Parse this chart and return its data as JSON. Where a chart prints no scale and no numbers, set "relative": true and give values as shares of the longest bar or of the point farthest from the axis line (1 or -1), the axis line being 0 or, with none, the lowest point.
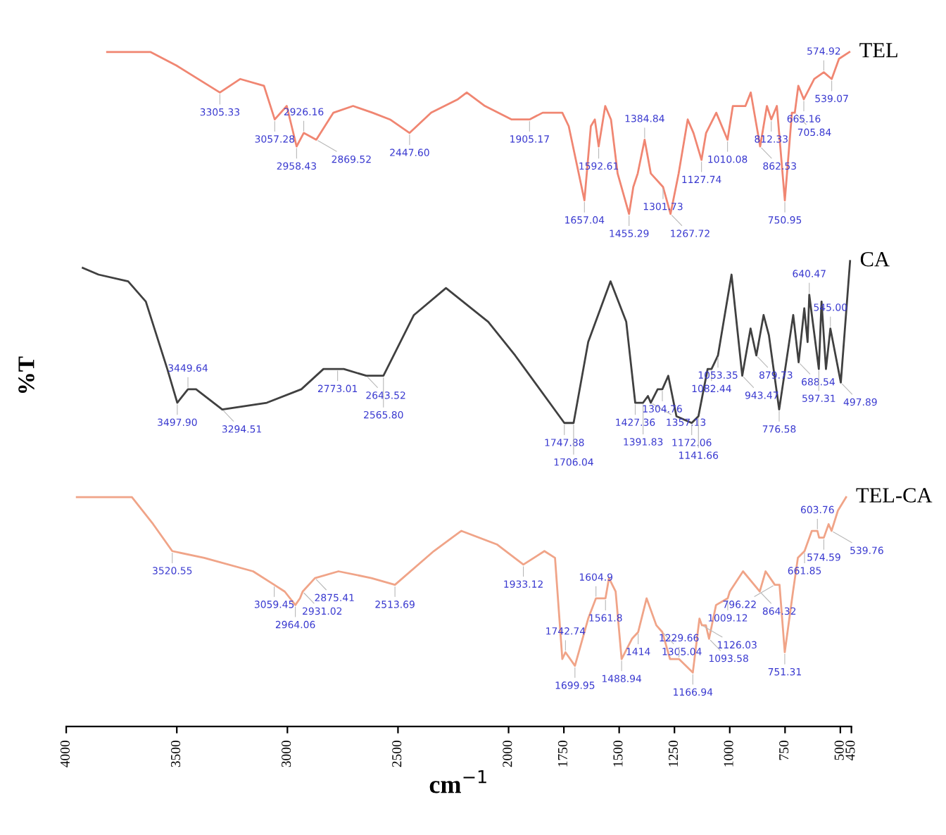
{
  "chart_data": {
    "type": "line",
    "relative": true,
    "xlabel": "cm$^{−1}$",
    "ylabel": "%T",
    "xlim": [
      4000,
      450
    ],
    "xticks": [
      4000,
      3500,
      3000,
      2500,
      2000,
      1750,
      1500,
      1250,
      1000,
      750,
      500,
      450
    ],
    "legend": false,
    "grid": false,
    "marker": "none",
    "line_style": "solid",
    "tick_labels": "x",
    "series": [
      {
        "name": "TEL",
        "color": "#f08672",
        "x": [
          3815,
          3618,
          3502,
          3305.33,
          3213,
          3106,
          3057.28,
          3003,
          2958.43,
          2926.16,
          2869.52,
          2792,
          2703,
          2615,
          2536,
          2447.6,
          2350,
          2229,
          2189,
          2107,
          1986,
          1905.17,
          1846,
          1757,
          1728,
          1657.04,
          1628,
          1610,
          1592.61,
          1563,
          1537,
          1507,
          1455.29,
          1436,
          1416,
          1384.84,
          1357,
          1301.73,
          1267.72,
          1231,
          1190,
          1164,
          1127.74,
          1107,
          1061,
          1010.08,
          986,
          929,
          905,
          862.53,
          832,
          812.33,
          787,
          750.95,
          719,
          705.84,
          690,
          665.16,
          618,
          574.92,
          539.07,
          506,
          459
        ],
        "values": [
          1.0,
          1.0,
          0.98,
          0.94,
          0.96,
          0.95,
          0.9,
          0.92,
          0.86,
          0.88,
          0.87,
          0.91,
          0.92,
          0.91,
          0.9,
          0.88,
          0.91,
          0.93,
          0.94,
          0.92,
          0.9,
          0.9,
          0.91,
          0.91,
          0.89,
          0.78,
          0.89,
          0.9,
          0.86,
          0.92,
          0.9,
          0.82,
          0.76,
          0.8,
          0.82,
          0.87,
          0.82,
          0.8,
          0.76,
          0.82,
          0.9,
          0.88,
          0.84,
          0.88,
          0.91,
          0.87,
          0.92,
          0.92,
          0.94,
          0.86,
          0.92,
          0.9,
          0.92,
          0.78,
          0.91,
          0.91,
          0.95,
          0.93,
          0.96,
          0.97,
          0.96,
          0.99,
          1.0
        ]
      },
      {
        "name": "CA",
        "color": "#404040",
        "x": [
          3925,
          3854,
          3720,
          3640,
          3543,
          3497.9,
          3449.64,
          3413,
          3294.51,
          3093,
          2937,
          2837,
          2773.01,
          2745,
          2643.52,
          2589,
          2565.8,
          2428,
          2283,
          2092,
          1970,
          1747.88,
          1706.04,
          1640,
          1539,
          1468,
          1427.36,
          1417,
          1391.83,
          1370,
          1357.13,
          1326,
          1304.76,
          1278,
          1241,
          1172.06,
          1141.66,
          1100,
          1082.44,
          1053.35,
          992,
          943.47,
          906,
          879.73,
          847,
          823,
          776.58,
          713,
          688.54,
          663,
          648,
          640.47,
          597.31,
          585,
          565,
          545.0,
          497.89,
          456
        ],
        "values": [
          0.68,
          0.67,
          0.66,
          0.63,
          0.53,
          0.48,
          0.5,
          0.5,
          0.47,
          0.48,
          0.5,
          0.53,
          0.53,
          0.53,
          0.52,
          0.52,
          0.52,
          0.61,
          0.65,
          0.6,
          0.55,
          0.45,
          0.45,
          0.57,
          0.66,
          0.6,
          0.48,
          0.48,
          0.48,
          0.49,
          0.48,
          0.5,
          0.5,
          0.52,
          0.46,
          0.45,
          0.46,
          0.53,
          0.53,
          0.55,
          0.67,
          0.52,
          0.59,
          0.55,
          0.61,
          0.58,
          0.47,
          0.61,
          0.54,
          0.62,
          0.57,
          0.64,
          0.53,
          0.63,
          0.53,
          0.59,
          0.51,
          0.69
        ]
      },
      {
        "name": "TEL-CA",
        "color": "#f0a488",
        "x": [
          3952,
          3703,
          3607,
          3520.55,
          3376,
          3155,
          3059.45,
          3012,
          2964.06,
          2943,
          2931.02,
          2875.41,
          2769,
          2620,
          2513.69,
          2338,
          2214,
          2053,
          1933.12,
          1838,
          1790,
          1757,
          1742.74,
          1699.95,
          1640,
          1604.9,
          1579,
          1561.8,
          1546,
          1516,
          1488.94,
          1442,
          1414,
          1376,
          1332,
          1305.04,
          1270,
          1229.66,
          1166.94,
          1137,
          1126.03,
          1108,
          1093.58,
          1062,
          1009.12,
          1000,
          940,
          864.32,
          838,
          796.22,
          775,
          751.31,
          714,
          692,
          661.85,
          629,
          603.76,
          596,
          574.59,
          553,
          539.76,
          511,
          474
        ],
        "values": [
          0.34,
          0.34,
          0.3,
          0.26,
          0.25,
          0.23,
          0.21,
          0.2,
          0.18,
          0.19,
          0.2,
          0.22,
          0.23,
          0.22,
          0.21,
          0.26,
          0.29,
          0.27,
          0.24,
          0.26,
          0.25,
          0.1,
          0.11,
          0.09,
          0.16,
          0.19,
          0.19,
          0.19,
          0.22,
          0.2,
          0.1,
          0.13,
          0.14,
          0.19,
          0.15,
          0.14,
          0.1,
          0.1,
          0.08,
          0.16,
          0.15,
          0.15,
          0.13,
          0.18,
          0.19,
          0.2,
          0.23,
          0.2,
          0.23,
          0.21,
          0.21,
          0.11,
          0.2,
          0.25,
          0.26,
          0.29,
          0.29,
          0.28,
          0.28,
          0.3,
          0.29,
          0.32,
          0.34
        ]
      }
    ],
    "annotations": [
      {
        "text": "3305.33",
        "x": 3305.33,
        "y": 0.94
      },
      {
        "text": "3057.28",
        "x": 3057.28,
        "y": 0.9
      },
      {
        "text": "2958.43",
        "x": 2958.43,
        "y": 0.86
      },
      {
        "text": "2926.16",
        "x": 2926.16,
        "y": 0.88
      },
      {
        "text": "2869.52",
        "x": 2869.52,
        "y": 0.87
      },
      {
        "text": "2447.60",
        "x": 2447.6,
        "y": 0.88
      },
      {
        "text": "1905.17",
        "x": 1905.17,
        "y": 0.9
      },
      {
        "text": "1657.04",
        "x": 1657.04,
        "y": 0.78
      },
      {
        "text": "1592.61",
        "x": 1592.61,
        "y": 0.86
      },
      {
        "text": "1455.29",
        "x": 1455.29,
        "y": 0.76
      },
      {
        "text": "1384.84",
        "x": 1384.84,
        "y": 0.87
      },
      {
        "text": "1301.73",
        "x": 1301.73,
        "y": 0.8
      },
      {
        "text": "1267.72",
        "x": 1267.72,
        "y": 0.76
      },
      {
        "text": "1127.74",
        "x": 1127.74,
        "y": 0.84
      },
      {
        "text": "1010.08",
        "x": 1010.08,
        "y": 0.87
      },
      {
        "text": "862.53",
        "x": 862.53,
        "y": 0.86
      },
      {
        "text": "812.33",
        "x": 812.33,
        "y": 0.9
      },
      {
        "text": "750.95",
        "x": 750.95,
        "y": 0.78
      },
      {
        "text": "705.84",
        "x": 705.84,
        "y": 0.91
      },
      {
        "text": "665.16",
        "x": 665.16,
        "y": 0.93
      },
      {
        "text": "574.92",
        "x": 574.92,
        "y": 0.97
      },
      {
        "text": "539.07",
        "x": 539.07,
        "y": 0.96
      },
      {
        "text": "3497.90",
        "x": 3497.9,
        "y": 0.48
      },
      {
        "text": "3449.64",
        "x": 3449.64,
        "y": 0.5
      },
      {
        "text": "3294.51",
        "x": 3294.51,
        "y": 0.47
      },
      {
        "text": "2773.01",
        "x": 2773.01,
        "y": 0.53
      },
      {
        "text": "2643.52",
        "x": 2643.52,
        "y": 0.52
      },
      {
        "text": "2565.80",
        "x": 2565.8,
        "y": 0.52
      },
      {
        "text": "1747.88",
        "x": 1747.88,
        "y": 0.45
      },
      {
        "text": "1706.04",
        "x": 1706.04,
        "y": 0.45
      },
      {
        "text": "1427.36",
        "x": 1427.36,
        "y": 0.48
      },
      {
        "text": "1391.83",
        "x": 1391.83,
        "y": 0.48
      },
      {
        "text": "1357.13",
        "x": 1357.13,
        "y": 0.48
      },
      {
        "text": "1304.76",
        "x": 1304.76,
        "y": 0.5
      },
      {
        "text": "1172.06",
        "x": 1172.06,
        "y": 0.45
      },
      {
        "text": "1141.66",
        "x": 1141.66,
        "y": 0.46
      },
      {
        "text": "1082.44",
        "x": 1082.44,
        "y": 0.53
      },
      {
        "text": "1053.35",
        "x": 1053.35,
        "y": 0.55
      },
      {
        "text": "943.47",
        "x": 943.47,
        "y": 0.52
      },
      {
        "text": "879.73",
        "x": 879.73,
        "y": 0.55
      },
      {
        "text": "776.58",
        "x": 776.58,
        "y": 0.47
      },
      {
        "text": "688.54",
        "x": 688.54,
        "y": 0.54
      },
      {
        "text": "640.47",
        "x": 640.47,
        "y": 0.64
      },
      {
        "text": "597.31",
        "x": 597.31,
        "y": 0.53
      },
      {
        "text": "545.00",
        "x": 545.0,
        "y": 0.59
      },
      {
        "text": "497.89",
        "x": 497.89,
        "y": 0.51
      },
      {
        "text": "3520.55",
        "x": 3520.55,
        "y": 0.26
      },
      {
        "text": "3059.45",
        "x": 3059.45,
        "y": 0.21
      },
      {
        "text": "2964.06",
        "x": 2964.06,
        "y": 0.18
      },
      {
        "text": "2931.02",
        "x": 2931.02,
        "y": 0.2
      },
      {
        "text": "2875.41",
        "x": 2875.41,
        "y": 0.22
      },
      {
        "text": "2513.69",
        "x": 2513.69,
        "y": 0.21
      },
      {
        "text": "1933.12",
        "x": 1933.12,
        "y": 0.24
      },
      {
        "text": "1742.74",
        "x": 1742.74,
        "y": 0.11
      },
      {
        "text": "1699.95",
        "x": 1699.95,
        "y": 0.09
      },
      {
        "text": "1604.9",
        "x": 1604.9,
        "y": 0.19
      },
      {
        "text": "1561.8",
        "x": 1561.8,
        "y": 0.19
      },
      {
        "text": "1488.94",
        "x": 1488.94,
        "y": 0.1
      },
      {
        "text": "1414",
        "x": 1414,
        "y": 0.14
      },
      {
        "text": "1305.04",
        "x": 1305.04,
        "y": 0.14
      },
      {
        "text": "1229.66",
        "x": 1229.66,
        "y": 0.1
      },
      {
        "text": "1166.94",
        "x": 1166.94,
        "y": 0.08
      },
      {
        "text": "1126.03",
        "x": 1126.03,
        "y": 0.15
      },
      {
        "text": "1093.58",
        "x": 1093.58,
        "y": 0.13
      },
      {
        "text": "1009.12",
        "x": 1009.12,
        "y": 0.19
      },
      {
        "text": "864.32",
        "x": 864.32,
        "y": 0.2
      },
      {
        "text": "796.22",
        "x": 796.22,
        "y": 0.21
      },
      {
        "text": "751.31",
        "x": 751.31,
        "y": 0.11
      },
      {
        "text": "661.85",
        "x": 661.85,
        "y": 0.26
      },
      {
        "text": "603.76",
        "x": 603.76,
        "y": 0.29
      },
      {
        "text": "574.59",
        "x": 574.59,
        "y": 0.28
      },
      {
        "text": "539.76",
        "x": 539.76,
        "y": 0.29
      }
    ]
  }
}
